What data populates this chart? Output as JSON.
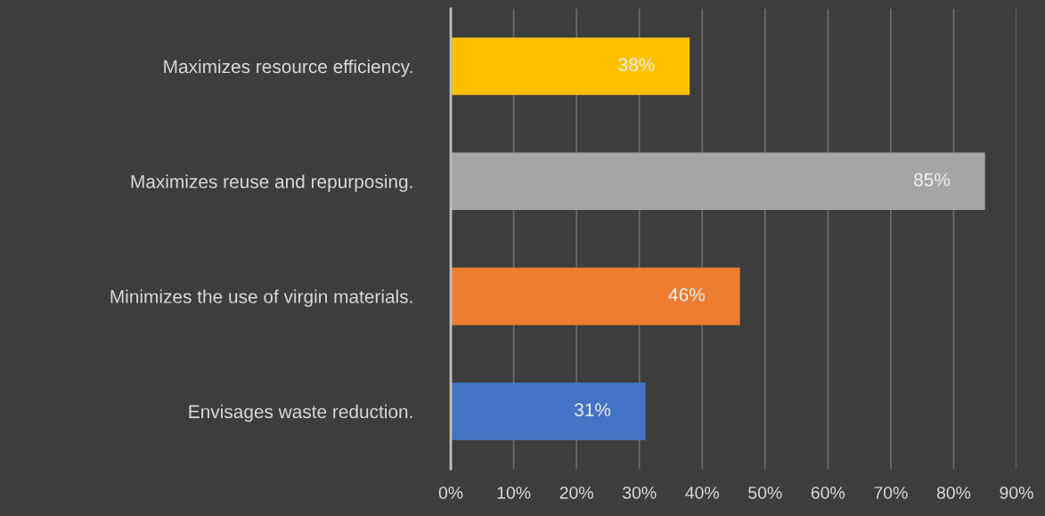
{
  "chart_data": {
    "type": "bar",
    "orientation": "horizontal",
    "categories": [
      "Maximizes resource efficiency.",
      "Maximizes reuse and repurposing.",
      "Minimizes the use of virgin materials.",
      "Envisages waste reduction."
    ],
    "values": [
      38,
      85,
      46,
      31
    ],
    "colors": [
      "#ffc000",
      "#a5a5a5",
      "#ed7d31",
      "#4472c4"
    ],
    "value_labels": [
      "38%",
      "85%",
      "46%",
      "31%"
    ],
    "xlim": [
      0,
      90
    ],
    "xticks": [
      {
        "value": 0,
        "label": "0%"
      },
      {
        "value": 10,
        "label": "10%"
      },
      {
        "value": 20,
        "label": "20%"
      },
      {
        "value": 30,
        "label": "30%"
      },
      {
        "value": 40,
        "label": "40%"
      },
      {
        "value": 50,
        "label": "50%"
      },
      {
        "value": 60,
        "label": "60%"
      },
      {
        "value": 70,
        "label": "70%"
      },
      {
        "value": 80,
        "label": "80%"
      },
      {
        "value": 90,
        "label": "90%"
      }
    ],
    "grid": "x"
  }
}
